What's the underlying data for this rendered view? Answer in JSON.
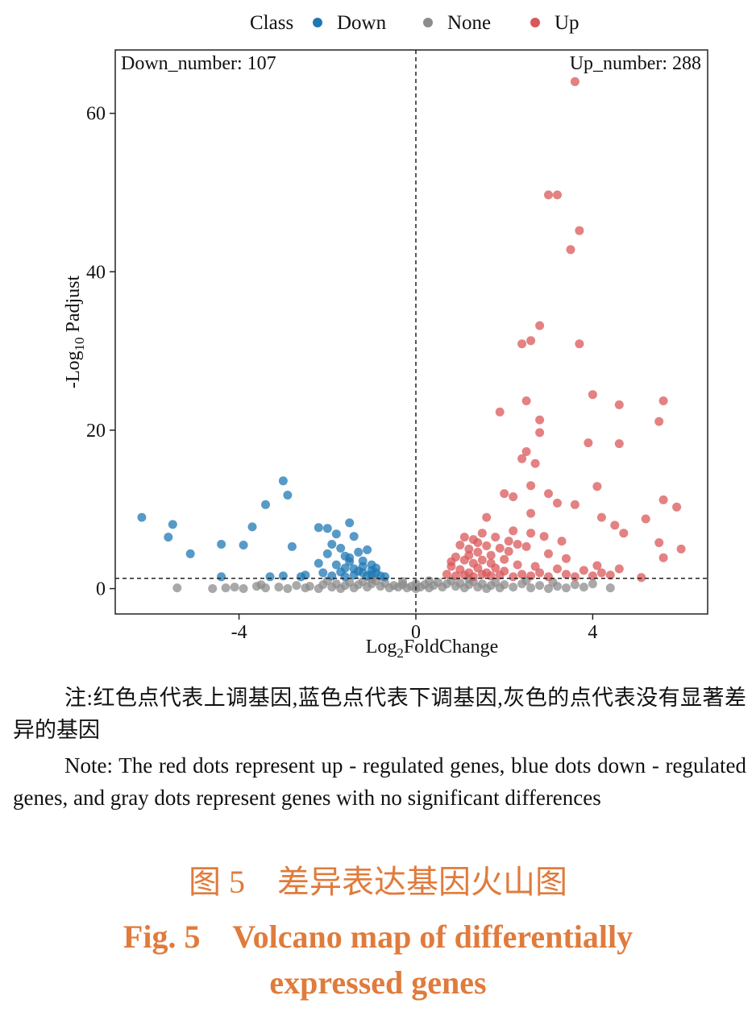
{
  "chart_data": {
    "type": "scatter",
    "xlabel_main": "Log",
    "xlabel_sub": "2",
    "xlabel_rest": "FoldChange",
    "ylabel_main": "-Log",
    "ylabel_sub": "10",
    "ylabel_rest": " Padjust",
    "xlim": [
      -6.8,
      6.6
    ],
    "ylim": [
      -3.2,
      68
    ],
    "xticks": [
      -4,
      0,
      4
    ],
    "yticks": [
      0,
      20,
      40,
      60
    ],
    "fc_threshold": 0,
    "padj_threshold": 1.3,
    "legend": {
      "title": "Class",
      "position": "top",
      "items": [
        {
          "name": "Down",
          "color": "#1f78b4"
        },
        {
          "name": "None",
          "color": "#8c8c8c"
        },
        {
          "name": "Up",
          "color": "#d9575a"
        }
      ]
    },
    "annotations": {
      "down_label": "Down_number: 107",
      "up_label": "Up_number: 288"
    },
    "series": [
      {
        "name": "Down",
        "color": "#1f78b4",
        "points": [
          [
            -6.2,
            9.0
          ],
          [
            -5.5,
            8.1
          ],
          [
            -5.6,
            6.5
          ],
          [
            -5.1,
            4.4
          ],
          [
            -4.4,
            5.6
          ],
          [
            -3.9,
            5.5
          ],
          [
            -3.7,
            7.8
          ],
          [
            -3.4,
            10.6
          ],
          [
            -3.0,
            13.6
          ],
          [
            -2.9,
            11.8
          ],
          [
            -2.8,
            5.3
          ],
          [
            -2.2,
            7.7
          ],
          [
            -2.0,
            7.6
          ],
          [
            -1.8,
            6.9
          ],
          [
            -1.5,
            8.3
          ],
          [
            -1.4,
            6.6
          ],
          [
            -1.7,
            5.1
          ],
          [
            -1.9,
            5.6
          ],
          [
            -2.0,
            4.4
          ],
          [
            -1.6,
            4.1
          ],
          [
            -1.3,
            4.6
          ],
          [
            -1.1,
            4.9
          ],
          [
            -1.5,
            3.4
          ],
          [
            -2.2,
            3.2
          ],
          [
            -1.8,
            3.0
          ],
          [
            -1.2,
            3.5
          ],
          [
            -1.0,
            3.0
          ],
          [
            -0.9,
            2.6
          ],
          [
            -1.3,
            2.2
          ],
          [
            -1.6,
            2.6
          ],
          [
            -2.1,
            2.0
          ],
          [
            -2.5,
            1.7
          ],
          [
            -3.0,
            1.6
          ],
          [
            -3.3,
            1.5
          ],
          [
            -4.4,
            1.5
          ],
          [
            -1.0,
            1.8
          ],
          [
            -0.8,
            1.6
          ],
          [
            -1.1,
            1.6
          ],
          [
            -1.4,
            1.7
          ],
          [
            -1.9,
            1.6
          ],
          [
            -0.9,
            2.0
          ],
          [
            -1.2,
            2.8
          ],
          [
            -1.7,
            2.1
          ],
          [
            -1.4,
            2.5
          ],
          [
            -1.6,
            1.5
          ],
          [
            -2.6,
            1.5
          ],
          [
            -0.7,
            1.5
          ],
          [
            -1.0,
            2.3
          ],
          [
            -1.5,
            3.9
          ],
          [
            -1.2,
            2.0
          ]
        ]
      },
      {
        "name": "None",
        "color": "#8c8c8c",
        "points": [
          [
            -5.4,
            0.1
          ],
          [
            -4.6,
            0.0
          ],
          [
            -4.3,
            0.1
          ],
          [
            -4.1,
            0.2
          ],
          [
            -3.9,
            0.0
          ],
          [
            -3.6,
            0.3
          ],
          [
            -3.4,
            0.1
          ],
          [
            -3.1,
            0.2
          ],
          [
            -2.9,
            0.0
          ],
          [
            -2.7,
            0.4
          ],
          [
            -2.5,
            0.1
          ],
          [
            -2.4,
            0.3
          ],
          [
            -2.2,
            0.0
          ],
          [
            -2.1,
            0.5
          ],
          [
            -1.9,
            0.2
          ],
          [
            -1.8,
            0.6
          ],
          [
            -1.7,
            0.0
          ],
          [
            -1.6,
            0.4
          ],
          [
            -1.5,
            0.8
          ],
          [
            -1.4,
            0.1
          ],
          [
            -1.3,
            0.5
          ],
          [
            -1.2,
            0.9
          ],
          [
            -1.1,
            0.2
          ],
          [
            -1.0,
            0.6
          ],
          [
            -0.9,
            1.0
          ],
          [
            -0.8,
            0.3
          ],
          [
            -0.7,
            0.7
          ],
          [
            -0.6,
            0.1
          ],
          [
            -0.5,
            0.4
          ],
          [
            -0.4,
            0.2
          ],
          [
            -0.3,
            0.5
          ],
          [
            -0.2,
            0.1
          ],
          [
            -0.1,
            0.3
          ],
          [
            0.0,
            0.0
          ],
          [
            0.1,
            0.2
          ],
          [
            0.2,
            0.5
          ],
          [
            0.3,
            0.1
          ],
          [
            0.4,
            0.4
          ],
          [
            0.5,
            0.8
          ],
          [
            0.6,
            0.2
          ],
          [
            0.7,
            0.6
          ],
          [
            0.8,
            1.0
          ],
          [
            0.9,
            0.3
          ],
          [
            1.0,
            0.7
          ],
          [
            1.1,
            0.1
          ],
          [
            1.2,
            0.5
          ],
          [
            1.3,
            0.9
          ],
          [
            1.4,
            0.2
          ],
          [
            1.5,
            0.6
          ],
          [
            1.6,
            0.0
          ],
          [
            1.7,
            0.4
          ],
          [
            1.8,
            0.8
          ],
          [
            1.9,
            0.1
          ],
          [
            2.0,
            0.5
          ],
          [
            2.2,
            0.2
          ],
          [
            2.4,
            0.6
          ],
          [
            2.6,
            0.1
          ],
          [
            2.8,
            0.4
          ],
          [
            3.0,
            0.0
          ],
          [
            3.2,
            0.3
          ],
          [
            3.4,
            0.1
          ],
          [
            3.6,
            0.5
          ],
          [
            3.8,
            0.2
          ],
          [
            4.0,
            0.6
          ],
          [
            4.4,
            0.1
          ],
          [
            3.1,
            0.8
          ],
          [
            2.5,
            1.0
          ],
          [
            -2.0,
            1.0
          ],
          [
            -1.0,
            1.2
          ],
          [
            1.2,
            1.2
          ],
          [
            -3.5,
            0.5
          ],
          [
            0.0,
            0.6
          ],
          [
            0.3,
            1.0
          ],
          [
            -0.3,
            0.9
          ]
        ]
      },
      {
        "name": "Up",
        "color": "#d9575a",
        "points": [
          [
            3.6,
            64.0
          ],
          [
            3.0,
            49.7
          ],
          [
            3.2,
            49.7
          ],
          [
            3.7,
            45.2
          ],
          [
            3.5,
            42.8
          ],
          [
            2.8,
            33.2
          ],
          [
            2.6,
            31.3
          ],
          [
            2.4,
            30.9
          ],
          [
            3.7,
            30.9
          ],
          [
            4.0,
            24.5
          ],
          [
            2.5,
            23.7
          ],
          [
            5.6,
            23.7
          ],
          [
            4.6,
            23.2
          ],
          [
            1.9,
            22.3
          ],
          [
            2.8,
            21.3
          ],
          [
            5.5,
            21.1
          ],
          [
            2.8,
            19.7
          ],
          [
            3.9,
            18.4
          ],
          [
            4.6,
            18.3
          ],
          [
            2.5,
            17.3
          ],
          [
            2.4,
            16.4
          ],
          [
            2.7,
            15.8
          ],
          [
            4.1,
            12.9
          ],
          [
            2.6,
            13.0
          ],
          [
            2.0,
            12.0
          ],
          [
            2.2,
            11.6
          ],
          [
            3.0,
            12.0
          ],
          [
            3.2,
            10.8
          ],
          [
            3.6,
            10.6
          ],
          [
            5.6,
            11.2
          ],
          [
            5.9,
            10.3
          ],
          [
            1.6,
            9.0
          ],
          [
            2.6,
            9.5
          ],
          [
            4.2,
            9.0
          ],
          [
            5.2,
            8.8
          ],
          [
            4.5,
            8.0
          ],
          [
            4.7,
            7.0
          ],
          [
            5.5,
            5.8
          ],
          [
            6.0,
            5.0
          ],
          [
            5.6,
            3.9
          ],
          [
            1.1,
            6.5
          ],
          [
            1.3,
            6.2
          ],
          [
            1.5,
            7.0
          ],
          [
            1.8,
            6.5
          ],
          [
            2.2,
            7.3
          ],
          [
            2.6,
            7.0
          ],
          [
            1.0,
            5.5
          ],
          [
            1.2,
            5.0
          ],
          [
            1.4,
            4.6
          ],
          [
            1.6,
            5.4
          ],
          [
            1.9,
            5.1
          ],
          [
            2.1,
            4.7
          ],
          [
            2.5,
            5.3
          ],
          [
            3.0,
            4.4
          ],
          [
            3.4,
            3.8
          ],
          [
            0.9,
            4.0
          ],
          [
            1.1,
            3.6
          ],
          [
            1.3,
            3.2
          ],
          [
            1.5,
            3.6
          ],
          [
            1.7,
            3.2
          ],
          [
            2.0,
            3.7
          ],
          [
            2.3,
            3.0
          ],
          [
            2.7,
            2.8
          ],
          [
            3.2,
            2.5
          ],
          [
            3.8,
            2.3
          ],
          [
            4.2,
            2.0
          ],
          [
            4.6,
            2.5
          ],
          [
            5.1,
            1.4
          ],
          [
            0.8,
            2.8
          ],
          [
            1.0,
            2.4
          ],
          [
            1.2,
            2.0
          ],
          [
            1.4,
            2.6
          ],
          [
            1.6,
            2.0
          ],
          [
            1.8,
            2.6
          ],
          [
            2.0,
            2.2
          ],
          [
            2.4,
            1.8
          ],
          [
            2.8,
            2.0
          ],
          [
            3.4,
            1.8
          ],
          [
            4.0,
            1.6
          ],
          [
            4.4,
            1.7
          ],
          [
            0.7,
            1.8
          ],
          [
            0.9,
            1.6
          ],
          [
            1.1,
            1.7
          ],
          [
            1.3,
            1.5
          ],
          [
            1.5,
            1.8
          ],
          [
            1.7,
            1.6
          ],
          [
            1.9,
            1.7
          ],
          [
            2.2,
            1.5
          ],
          [
            2.6,
            1.6
          ],
          [
            3.0,
            1.5
          ],
          [
            3.6,
            1.5
          ],
          [
            4.1,
            2.9
          ],
          [
            0.8,
            3.4
          ],
          [
            1.2,
            4.2
          ],
          [
            1.4,
            5.8
          ],
          [
            1.7,
            4.2
          ],
          [
            2.1,
            6.0
          ],
          [
            2.3,
            5.6
          ],
          [
            2.9,
            6.6
          ],
          [
            3.3,
            6.0
          ]
        ]
      }
    ]
  },
  "note": {
    "zh": "注:红色点代表上调基因,蓝色点代表下调基因,灰色的点代表没有显著差异的基因",
    "en": "Note: The red dots represent up - regulated genes, blue dots down - regulated genes, and gray dots represent genes with no significant differences"
  },
  "caption": {
    "zh": "图 5　差异表达基因火山图",
    "en_line1": "Fig. 5　Volcano map of differentially",
    "en_line2": "expressed genes"
  }
}
